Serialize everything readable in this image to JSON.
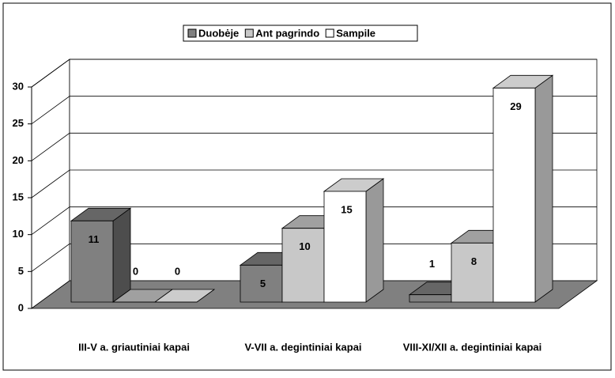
{
  "chart_data": {
    "type": "bar3d",
    "categories": [
      "III-V a. griautiniai kapai",
      "V-VII a. degintiniai kapai",
      "VIII-XI/XII a. degintiniai kapai"
    ],
    "series": [
      {
        "name": "Duobėje",
        "color": "#808080",
        "values": [
          11,
          5,
          1
        ]
      },
      {
        "name": "Ant pagrindo",
        "color": "#c8c8c8",
        "values": [
          0,
          10,
          8
        ]
      },
      {
        "name": "Sampile",
        "color": "#ffffff",
        "values": [
          0,
          15,
          29
        ]
      }
    ],
    "ylim": [
      0,
      30
    ],
    "yticks": [
      0,
      5,
      10,
      15,
      20,
      25,
      30
    ],
    "grid": true,
    "legend": "top"
  }
}
